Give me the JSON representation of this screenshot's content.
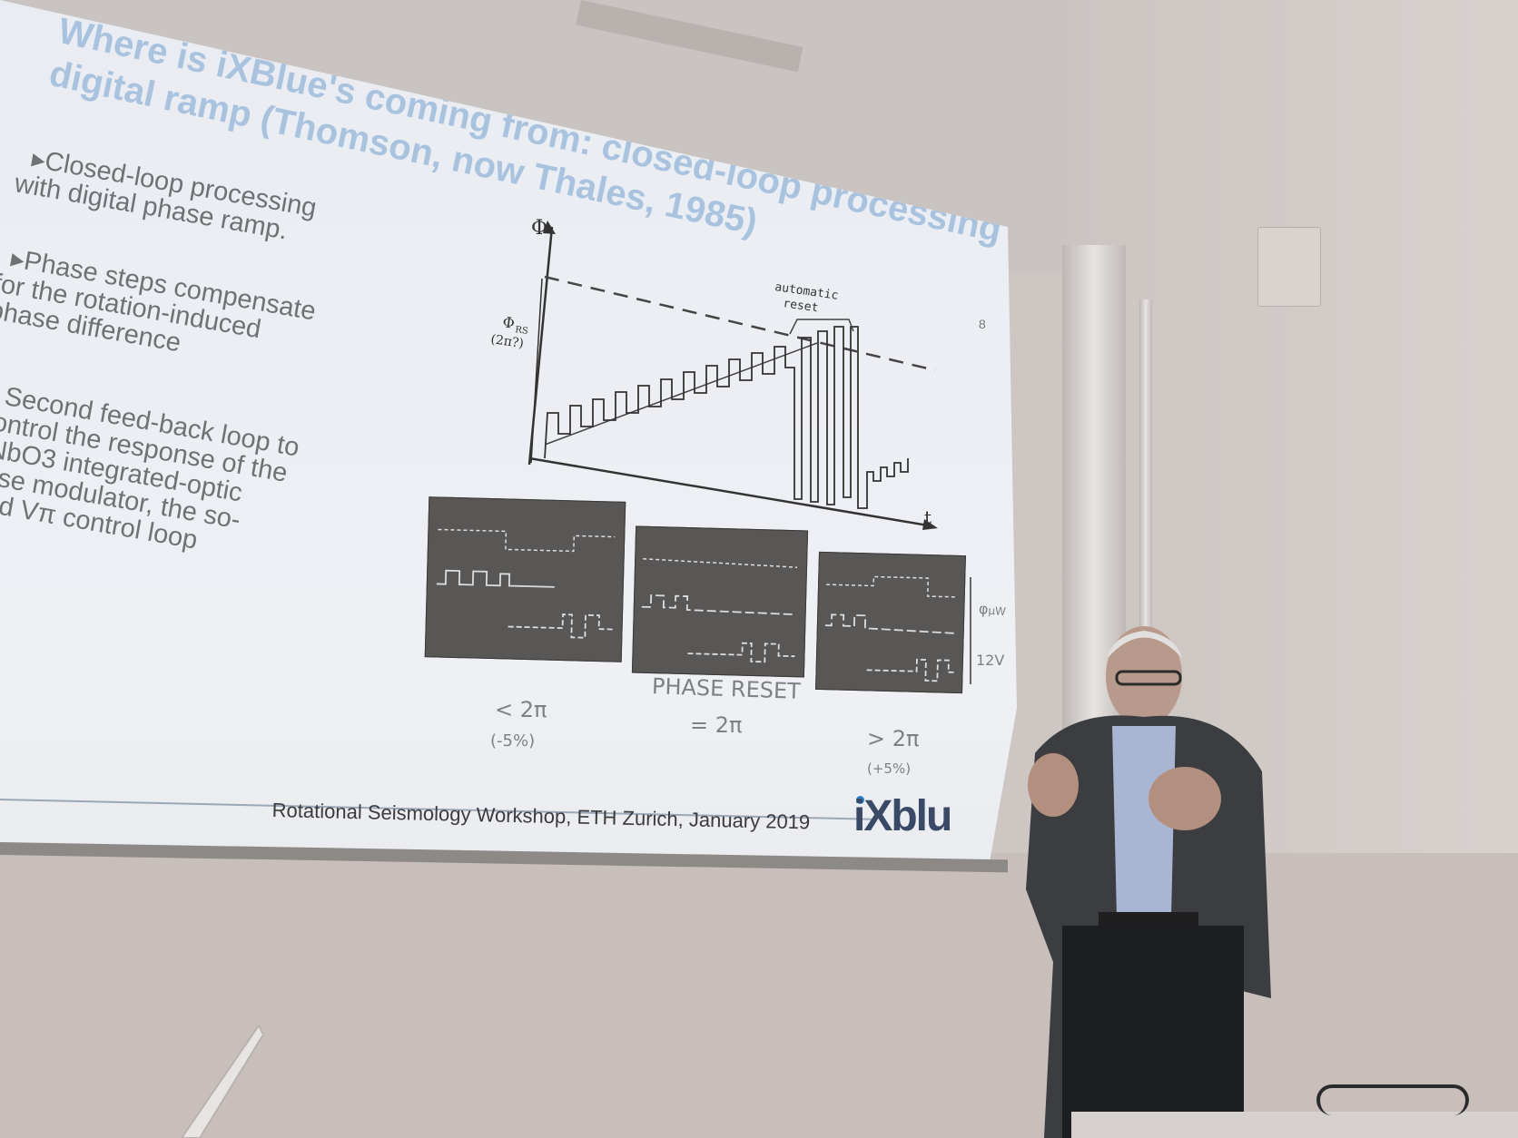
{
  "slide": {
    "title_line1": "Where is iXBlue's coming from: closed-loop processing with",
    "title_line2": "digital ramp (Thomson, now Thales, 1985)",
    "bullets": [
      {
        "lines": [
          "▸Closed-loop processing",
          "with digital phase ramp."
        ]
      },
      {
        "lines": [
          "▸Phase steps compensate",
          "for the rotation-induced",
          "phase difference"
        ]
      },
      {
        "lines": [
          "Second feed-back loop to",
          "ontrol the response of the",
          "NbO3  integrated-optic",
          "ase modulator, the so-",
          "led Vπ control loop"
        ]
      }
    ],
    "page_number": "8",
    "footer": "Rotational Seismology Workshop, ETH Zurich, January 2019",
    "logo": "iXblu"
  },
  "diagram": {
    "y_axis_label": "Φ",
    "x_axis_label": "t",
    "reset_level_label_1": "Φ",
    "reset_level_label_1_sub": "RS",
    "reset_level_label_2": "(2π?)",
    "annotation_1": "automatic",
    "annotation_2": "reset"
  },
  "oscillograms": {
    "right_label_top": "φ",
    "right_label_top_sub": "μW",
    "right_label_bottom": "12V",
    "center_caption": "PHASE RESET",
    "captions": [
      {
        "main": "< 2π",
        "sub": "(-5%)"
      },
      {
        "main": "= 2π",
        "sub": ""
      },
      {
        "main": "> 2π",
        "sub": "(+5%)"
      }
    ]
  }
}
